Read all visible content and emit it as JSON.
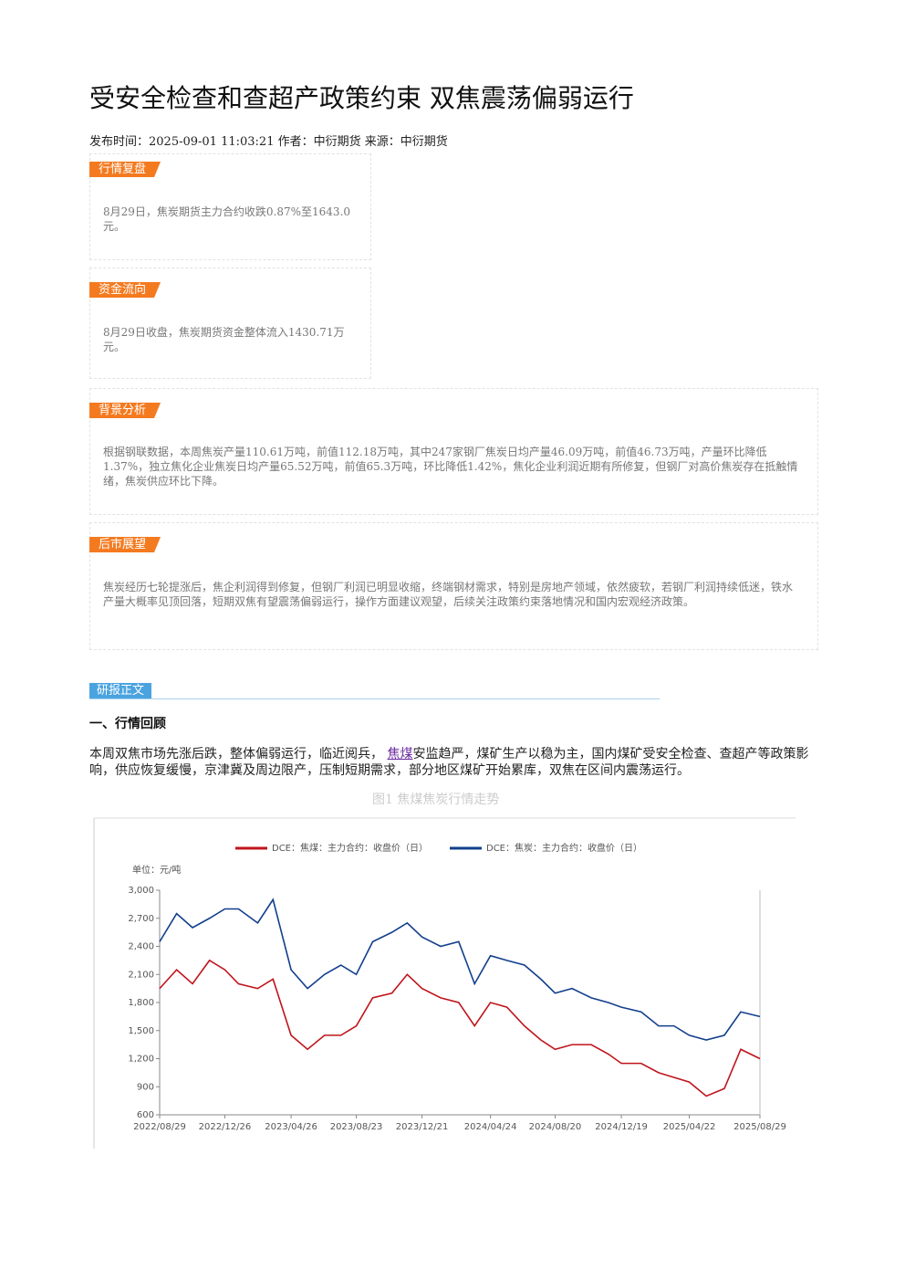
{
  "header": {
    "title": "受安全检查和查超产政策约束 双焦震荡偏弱运行",
    "meta": "发布时间：2025-09-01 11:03:21 作者：中衍期货 来源：中衍期货"
  },
  "summary": [
    {
      "tag": "行情复盘",
      "text": "8月29日，焦炭期货主力合约收跌0.87%至1643.0元。"
    },
    {
      "tag": "资金流向",
      "text": "8月29日收盘，焦炭期货资金整体流入1430.71万元。"
    },
    {
      "tag": "背景分析",
      "text": "根据钢联数据，本周焦炭产量110.61万吨，前值112.18万吨，其中247家钢厂焦炭日均产量46.09万吨，前值46.73万吨，产量环比降低1.37%，独立焦化企业焦炭日均产量65.52万吨，前值65.3万吨，环比降低1.42%，焦化企业利润近期有所修复，但钢厂对高价焦炭存在抵触情绪，焦炭供应环比下降。"
    },
    {
      "tag": "后市展望",
      "text": "焦炭经历七轮提涨后，焦企利润得到修复，但钢厂利润已明显收缩，终端钢材需求，特别是房地产领域，依然疲软，若钢厂利润持续低迷，铁水产量大概率见顶回落，短期双焦有望震荡偏弱运行，操作方面建议观望，后续关注政策约束落地情况和国内宏观经济政策。"
    }
  ],
  "report": {
    "tag": "研报正文",
    "heading": "一、行情回顾",
    "paragraph": [
      "本周双焦市场先涨后跌，整体偏弱运行，临近阅兵，",
      "焦煤",
      "安监趋严，煤矿生产以稳为主，国内煤矿受安全检查、查超产等政策影响，供应恢复缓慢，京津冀及周边限产，压制短期需求，部分地区煤矿开始累库，双焦在区间内震荡运行。"
    ],
    "figure_caption": "图1 焦煤焦炭行情走势"
  },
  "chart_data": {
    "type": "line",
    "y_label": "单位：元/吨",
    "x": [
      "2022/08/29",
      "2022/09/29",
      "2022/10/28",
      "2022/11/28",
      "2022/12/26",
      "2023/01/20",
      "2023/02/24",
      "2023/03/24",
      "2023/04/26",
      "2023/05/26",
      "2023/06/26",
      "2023/07/26",
      "2023/08/23",
      "2023/09/22",
      "2023/10/27",
      "2023/11/24",
      "2023/12/21",
      "2024/01/24",
      "2024/02/26",
      "2024/03/26",
      "2024/04/24",
      "2024/05/24",
      "2024/06/25",
      "2024/07/25",
      "2024/08/20",
      "2024/09/20",
      "2024/10/25",
      "2024/11/25",
      "2024/12/19",
      "2025/01/24",
      "2025/02/25",
      "2025/03/25",
      "2025/04/22",
      "2025/05/23",
      "2025/06/25",
      "2025/07/25",
      "2025/08/29"
    ],
    "series": [
      {
        "name": "DCE：焦煤：主力合约：收盘价（日）",
        "color": "#c0141c",
        "values": [
          1950,
          2150,
          2000,
          2250,
          2150,
          2000,
          1950,
          2050,
          1450,
          1300,
          1450,
          1450,
          1550,
          1850,
          1900,
          2100,
          1950,
          1850,
          1800,
          1550,
          1800,
          1750,
          1550,
          1400,
          1300,
          1350,
          1350,
          1250,
          1150,
          1150,
          1050,
          1000,
          950,
          800,
          880,
          1300,
          1200
        ]
      },
      {
        "name": "DCE：焦炭：主力合约：收盘价（日）",
        "color": "#123f8c",
        "values": [
          2450,
          2750,
          2600,
          2700,
          2800,
          2800,
          2650,
          2900,
          2150,
          1950,
          2100,
          2200,
          2100,
          2450,
          2550,
          2650,
          2500,
          2400,
          2450,
          2000,
          2300,
          2250,
          2200,
          2050,
          1900,
          1950,
          1850,
          1800,
          1750,
          1700,
          1550,
          1550,
          1450,
          1400,
          1450,
          1700,
          1650
        ]
      }
    ],
    "xlim": [
      "2022/08/29",
      "2025/08/29"
    ],
    "xticks": [
      "2022/08/29",
      "2022/12/26",
      "2023/04/26",
      "2023/08/23",
      "2023/12/21",
      "2024/04/24",
      "2024/08/20",
      "2024/12/19",
      "2025/04/22",
      "2025/08/29"
    ],
    "ylim": [
      600,
      3000
    ],
    "yticks": [
      600,
      900,
      {
        "value": 1200,
        "label": "1,200"
      },
      {
        "value": 1500,
        "label": "1,500"
      },
      {
        "value": 1800,
        "label": "1,800"
      },
      {
        "value": 2100,
        "label": "2,100"
      },
      {
        "value": 2400,
        "label": "2,400"
      },
      {
        "value": 2700,
        "label": "2,700"
      },
      {
        "value": 3000,
        "label": "3,000"
      }
    ]
  }
}
